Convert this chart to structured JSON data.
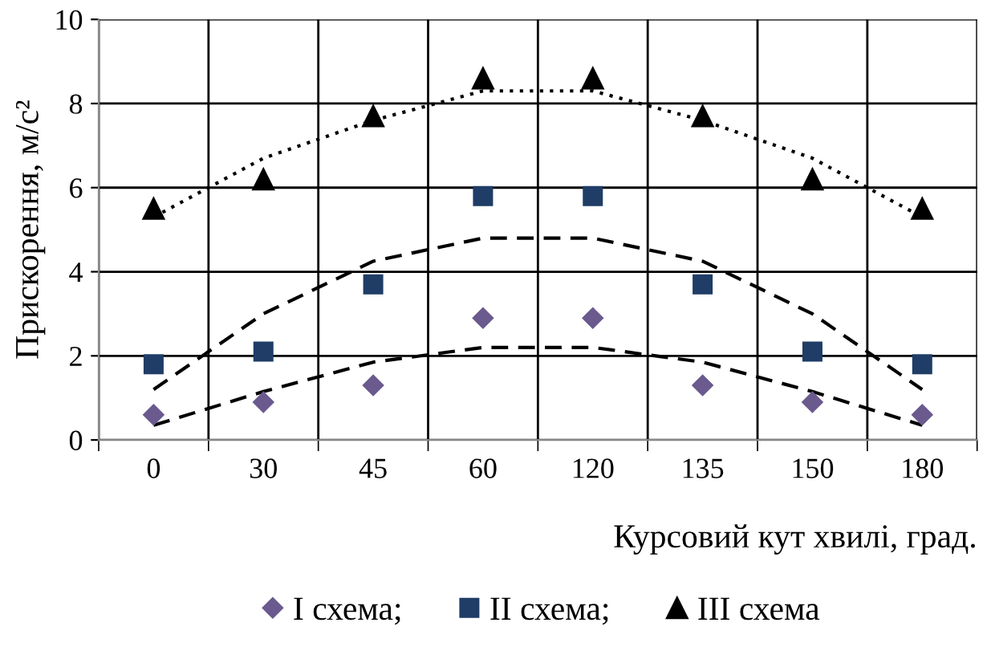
{
  "chart_data": {
    "type": "scatter",
    "xlabel": "Курсовий кут хвилі, град.",
    "ylabel": "Прискорення, м/с²",
    "categories": [
      "0",
      "30",
      "45",
      "60",
      "120",
      "135",
      "150",
      "180"
    ],
    "series": [
      {
        "name": "I схема;",
        "marker": "diamond",
        "color": "#6a5a8e",
        "values": [
          0.6,
          0.9,
          1.3,
          2.9,
          2.9,
          1.3,
          0.9,
          0.6
        ]
      },
      {
        "name": "II схема;",
        "marker": "square",
        "color": "#1f3d66",
        "values": [
          1.8,
          2.1,
          3.7,
          5.8,
          5.8,
          3.7,
          2.1,
          1.8
        ]
      },
      {
        "name": "III схема",
        "marker": "triangle",
        "color": "#000000",
        "values": [
          5.5,
          6.2,
          7.7,
          8.6,
          8.6,
          7.7,
          6.2,
          5.5
        ]
      },
      {
        "type": "line",
        "line_style": "dashed",
        "color": "#000000",
        "values": [
          0.35,
          1.15,
          1.85,
          2.2,
          2.2,
          1.85,
          1.15,
          0.35
        ]
      },
      {
        "type": "line",
        "line_style": "dashed",
        "color": "#000000",
        "values": [
          1.2,
          3.0,
          4.25,
          4.8,
          4.8,
          4.25,
          3.0,
          1.2
        ]
      },
      {
        "type": "line",
        "line_style": "dotted",
        "color": "#000000",
        "values": [
          5.3,
          6.7,
          7.6,
          8.3,
          8.3,
          7.6,
          6.7,
          5.3
        ]
      }
    ],
    "ylim": [
      0,
      10
    ],
    "yticks": [
      0,
      2,
      4,
      6,
      8,
      10
    ],
    "grid": true,
    "legend": "bottom"
  }
}
